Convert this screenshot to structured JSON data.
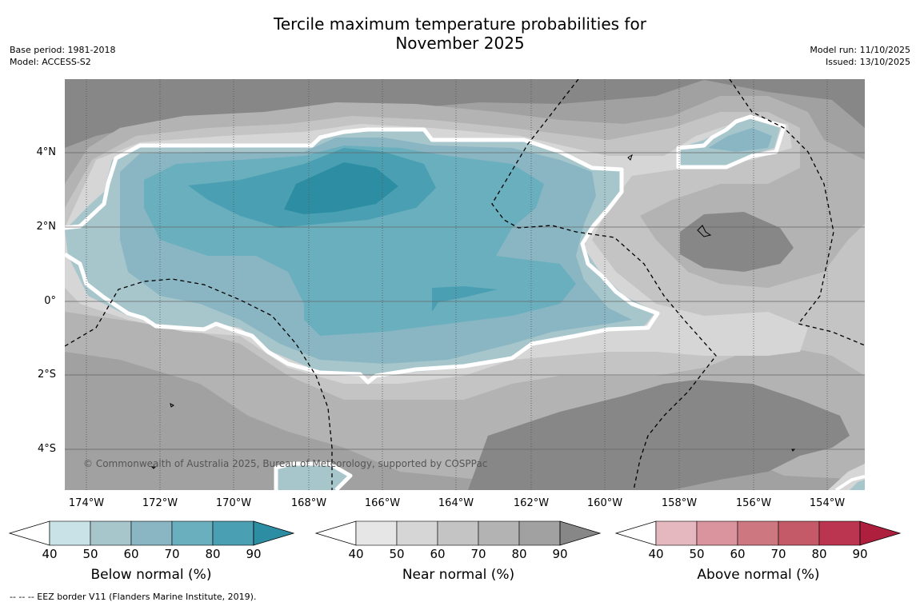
{
  "title_line1": "Tercile maximum temperature probabilities for",
  "title_line2": "November 2025",
  "meta_left": {
    "base_period": "Base period: 1981-2018",
    "model": "Model: ACCESS-S2"
  },
  "meta_right": {
    "model_run": "Model run: 11/10/2025",
    "issued": "Issued: 13/10/2025"
  },
  "lat_labels": [
    "4°N",
    "2°N",
    "0°",
    "2°S",
    "4°S"
  ],
  "lon_labels": [
    "174°W",
    "172°W",
    "170°W",
    "168°W",
    "166°W",
    "164°W",
    "162°W",
    "160°W",
    "158°W",
    "156°W",
    "154°W"
  ],
  "copyright": "© Commonwealth of Australia 2025, Bureau of Meteorology, supported by COSPPac",
  "colorbars": [
    {
      "title": "Below normal (%)",
      "ticks": [
        "40",
        "50",
        "60",
        "70",
        "80",
        "90"
      ],
      "colors": [
        "#ffffff",
        "#c9e2e8",
        "#a6c6cc",
        "#8ab6c4",
        "#6aafbe",
        "#4aa0b2",
        "#2d8ea3"
      ]
    },
    {
      "title": "Near normal (%)",
      "ticks": [
        "40",
        "50",
        "60",
        "70",
        "80",
        "90"
      ],
      "colors": [
        "#ffffff",
        "#e6e6e6",
        "#d6d6d6",
        "#c4c4c4",
        "#b3b3b3",
        "#a1a1a1",
        "#878787"
      ]
    },
    {
      "title": "Above normal (%)",
      "ticks": [
        "40",
        "50",
        "60",
        "70",
        "80",
        "90"
      ],
      "colors": [
        "#ffffff",
        "#e5b8bf",
        "#d9949e",
        "#cd7780",
        "#c45a68",
        "#bb3450",
        "#ae1f3e"
      ]
    }
  ],
  "footnote": "--  --  -- EEZ border V11 (Flanders Marine Institute, 2019).",
  "colors": {
    "near_dark": "#878787",
    "near_80": "#a1a1a1",
    "near_70": "#b3b3b3",
    "near_60": "#c4c4c4",
    "near_50": "#d6d6d6",
    "below_50": "#a6c6cc",
    "below_60": "#8ab6c4",
    "below_70": "#6aafbe",
    "below_80": "#4aa0b2",
    "below_90": "#2d8ea3"
  }
}
